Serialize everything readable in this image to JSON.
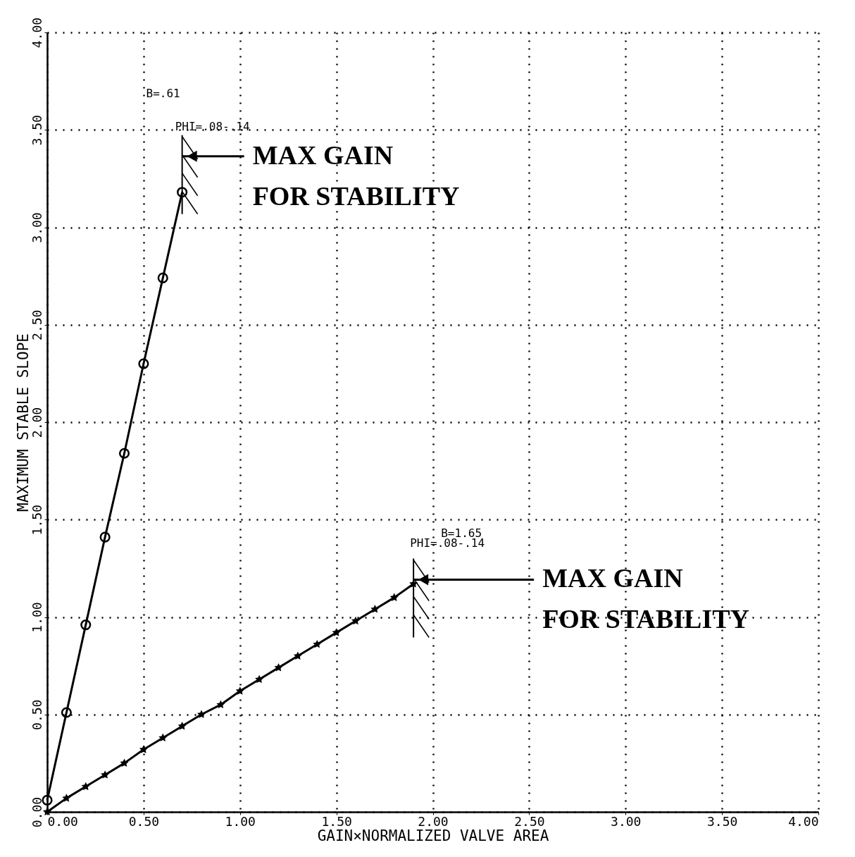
{
  "chart_data": {
    "type": "line",
    "xlabel": "GAIN×NORMALIZED VALVE AREA",
    "ylabel": "MAXIMUM STABLE SLOPE",
    "xlim": [
      0,
      4
    ],
    "ylim": [
      0,
      4
    ],
    "xticks": [
      {
        "value": 0,
        "label": "0.00"
      },
      {
        "value": 0.5,
        "label": "0.50"
      },
      {
        "value": 1,
        "label": "1.00"
      },
      {
        "value": 1.5,
        "label": "1.50"
      },
      {
        "value": 2,
        "label": "2.00"
      },
      {
        "value": 2.5,
        "label": "2.50"
      },
      {
        "value": 3,
        "label": "3.00"
      },
      {
        "value": 3.5,
        "label": "3.50"
      },
      {
        "value": 4,
        "label": "4.00"
      }
    ],
    "yticks": [
      {
        "value": 0,
        "label": "0.00"
      },
      {
        "value": 0.5,
        "label": "0.50"
      },
      {
        "value": 1,
        "label": "1.00"
      },
      {
        "value": 1.5,
        "label": "1.50"
      },
      {
        "value": 2,
        "label": "2.00"
      },
      {
        "value": 2.5,
        "label": "2.50"
      },
      {
        "value": 3,
        "label": "3.00"
      },
      {
        "value": 3.5,
        "label": "3.50"
      },
      {
        "value": 4,
        "label": "4.00"
      }
    ],
    "grid": true,
    "series": [
      {
        "color": "#000000",
        "marker": "circle",
        "line_style": "solid",
        "x": [
          0,
          0.1,
          0.2,
          0.3,
          0.4,
          0.5,
          0.6,
          0.7
        ],
        "values": [
          0.06,
          0.51,
          0.96,
          1.41,
          1.84,
          2.3,
          2.74,
          3.18
        ]
      },
      {
        "color": "#000000",
        "marker": "star",
        "line_style": "solid",
        "x": [
          0,
          0.1,
          0.2,
          0.3,
          0.4,
          0.5,
          0.6,
          0.7,
          0.8,
          0.9,
          1.0,
          1.1,
          1.2,
          1.3,
          1.4,
          1.5,
          1.6,
          1.7,
          1.8,
          1.9
        ],
        "values": [
          0.0,
          0.07,
          0.13,
          0.19,
          0.25,
          0.32,
          0.38,
          0.44,
          0.5,
          0.55,
          0.62,
          0.68,
          0.74,
          0.8,
          0.86,
          0.92,
          0.98,
          1.04,
          1.1,
          1.17
        ]
      }
    ],
    "annotations": [
      "B=.61",
      "PHI=.08-.14",
      "MAX GAIN\nFOR STABILITY",
      "B=1.65",
      "PHI=.08-.14",
      "MAX GAIN\nFOR STABILITY"
    ]
  }
}
